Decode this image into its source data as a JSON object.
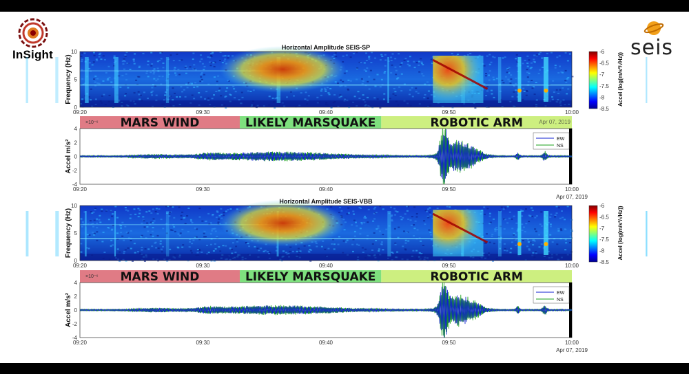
{
  "logos": {
    "left": "InSight",
    "right": "seis"
  },
  "colorbar": {
    "label": "Accel (log(m/s²/√Hz))",
    "ticks": [
      -6,
      -6.5,
      -7,
      -7.5,
      -8,
      -8.5
    ]
  },
  "chart_data": [
    {
      "type": "heatmap",
      "title": "Horizontal Amplitude SEIS-SP",
      "xlabel": "",
      "ylabel": "Frequency (Hz)",
      "xlim": [
        "09:20",
        "10:00"
      ],
      "ylim": [
        0,
        10
      ],
      "x_ticks": [
        "09:20",
        "09:30",
        "09:40",
        "09:50",
        "10:00"
      ],
      "y_ticks": [
        0,
        5,
        10
      ],
      "clim": [
        -8.5,
        -6
      ],
      "date_label": "Apr 07, 2019"
    },
    {
      "type": "line",
      "title": "",
      "xlabel": "",
      "ylabel": "Accel m/s²",
      "y_exponent": "×10⁻⁶",
      "xlim": [
        "09:20",
        "10:00"
      ],
      "ylim": [
        -4,
        4
      ],
      "x_ticks": [
        "09:20",
        "09:30",
        "09:40",
        "09:50",
        "10:00"
      ],
      "y_ticks": [
        4,
        2,
        0,
        -2,
        -4
      ],
      "legend": [
        "EW",
        "NS"
      ],
      "legend_position": "top-right",
      "date_label": "Apr 07, 2019",
      "bands": [
        {
          "label": "MARS WIND",
          "start": "09:20",
          "end": "09:33",
          "color": "#e07b85"
        },
        {
          "label": "LIKELY MARSQUAKE",
          "start": "09:33",
          "end": "09:44.5",
          "color": "#7ee07e"
        },
        {
          "label": "ROBOTIC ARM",
          "start": "09:44.5",
          "end": "10:00",
          "color": "#cdef80"
        }
      ]
    },
    {
      "type": "heatmap",
      "title": "Horizontal Amplitude SEIS-VBB",
      "xlabel": "",
      "ylabel": "Frequency (Hz)",
      "xlim": [
        "09:20",
        "10:00"
      ],
      "ylim": [
        0,
        10
      ],
      "x_ticks": [
        "09:20",
        "09:30",
        "09:40",
        "09:50",
        "10:00"
      ],
      "y_ticks": [
        0,
        5,
        10
      ],
      "clim": [
        -8.5,
        -6
      ],
      "date_label": ""
    },
    {
      "type": "line",
      "title": "",
      "xlabel": "",
      "ylabel": "Accel m/s²",
      "y_exponent": "×10⁻⁶",
      "xlim": [
        "09:20",
        "10:00"
      ],
      "ylim": [
        -4,
        4
      ],
      "x_ticks": [
        "09:20",
        "09:30",
        "09:40",
        "09:50",
        "10:00"
      ],
      "y_ticks": [
        4,
        2,
        0,
        -2,
        -4
      ],
      "legend": [
        "EW",
        "NS"
      ],
      "legend_position": "top-right",
      "date_label": "Apr 07, 2019",
      "bands": [
        {
          "label": "MARS WIND",
          "start": "09:20",
          "end": "09:33",
          "color": "#e07b85"
        },
        {
          "label": "LIKELY MARSQUAKE",
          "start": "09:33",
          "end": "09:44.5",
          "color": "#7ee07e"
        },
        {
          "label": "ROBOTIC ARM",
          "start": "09:44.5",
          "end": "10:00",
          "color": "#cdef80"
        }
      ]
    }
  ]
}
